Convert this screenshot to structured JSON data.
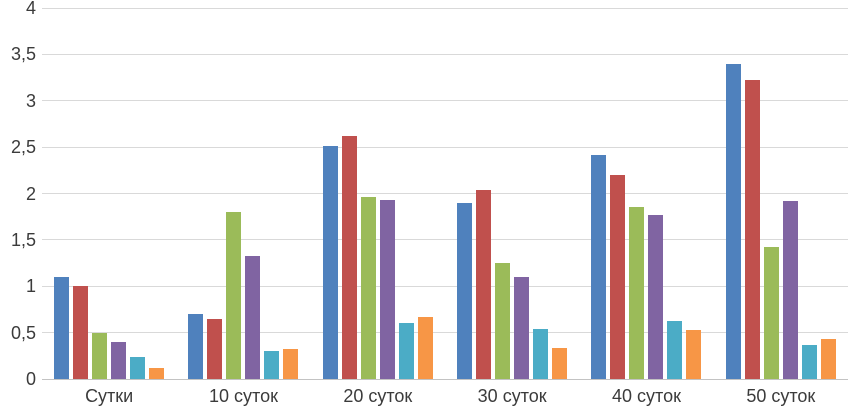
{
  "chart_data": {
    "type": "bar",
    "title": "",
    "xlabel": "",
    "ylabel": "",
    "categories": [
      "Сутки",
      "10 суток",
      "20 суток",
      "30 суток",
      "40 суток",
      "50 суток"
    ],
    "series": [
      {
        "name": "blue",
        "color": "#4F81BD",
        "values": [
          1.1,
          0.7,
          2.51,
          1.9,
          2.42,
          3.4
        ]
      },
      {
        "name": "red",
        "color": "#C0504D",
        "values": [
          1.0,
          0.65,
          2.62,
          2.04,
          2.2,
          3.22
        ]
      },
      {
        "name": "green",
        "color": "#9BBB59",
        "values": [
          0.5,
          1.8,
          1.96,
          1.25,
          1.85,
          1.42
        ]
      },
      {
        "name": "purple",
        "color": "#8064A2",
        "values": [
          0.4,
          1.33,
          1.93,
          1.1,
          1.77,
          1.92
        ]
      },
      {
        "name": "teal",
        "color": "#4BACC6",
        "values": [
          0.24,
          0.3,
          0.6,
          0.54,
          0.63,
          0.37
        ]
      },
      {
        "name": "orange",
        "color": "#F79646",
        "values": [
          0.12,
          0.32,
          0.67,
          0.33,
          0.53,
          0.43
        ]
      }
    ],
    "ylim": [
      0,
      4
    ],
    "ytick_step": 0.5,
    "ytick_labels": [
      "0",
      "0,5",
      "1",
      "1,5",
      "2",
      "2,5",
      "3",
      "3,5",
      "4"
    ],
    "grid": true,
    "legend": false,
    "gridline_color": "#d9d9d9",
    "baseline_color": "#c3c3c3",
    "label_color": "#3b3b3b",
    "background": "#ffffff"
  }
}
